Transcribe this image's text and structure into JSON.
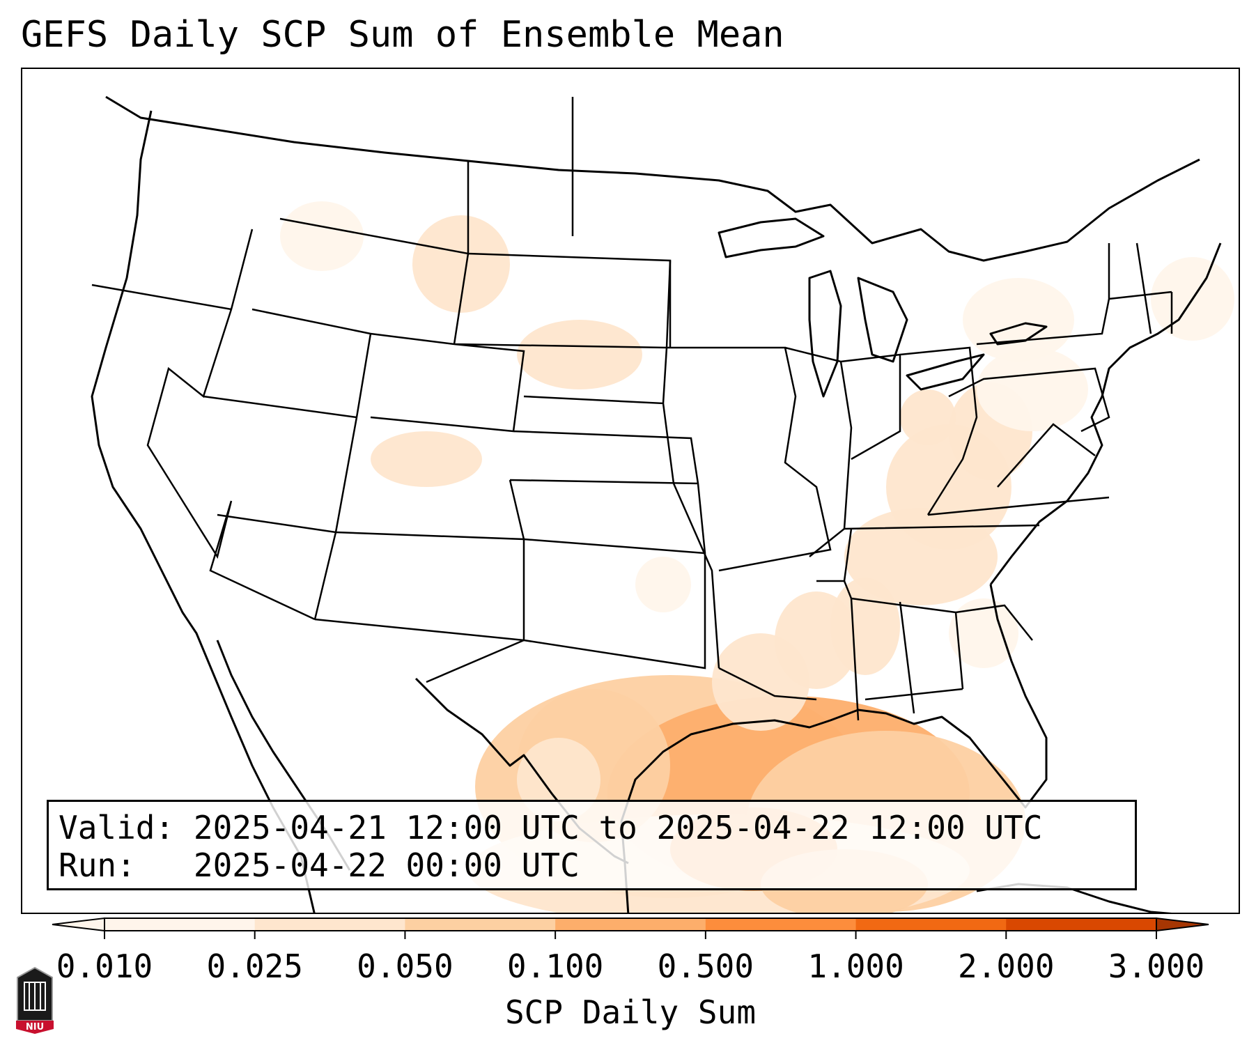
{
  "title": "GEFS Daily SCP Sum of Ensemble Mean",
  "info": {
    "valid_label": "Valid:",
    "valid_text": "2025-04-21 12:00 UTC to 2025-04-22 12:00 UTC",
    "run_label": "Run:",
    "run_text": "2025-04-22 00:00 UTC"
  },
  "colorbar": {
    "label": "SCP Daily Sum",
    "ticks": [
      "0.010",
      "0.025",
      "0.050",
      "0.100",
      "0.500",
      "1.000",
      "2.000",
      "3.000"
    ],
    "colors": [
      "#fff5eb",
      "#fee6ce",
      "#fdd0a2",
      "#fdae6b",
      "#fd8d3c",
      "#f16913",
      "#d94801",
      "#a63603"
    ],
    "extend": "both"
  },
  "logo": {
    "text": "NIU"
  }
}
